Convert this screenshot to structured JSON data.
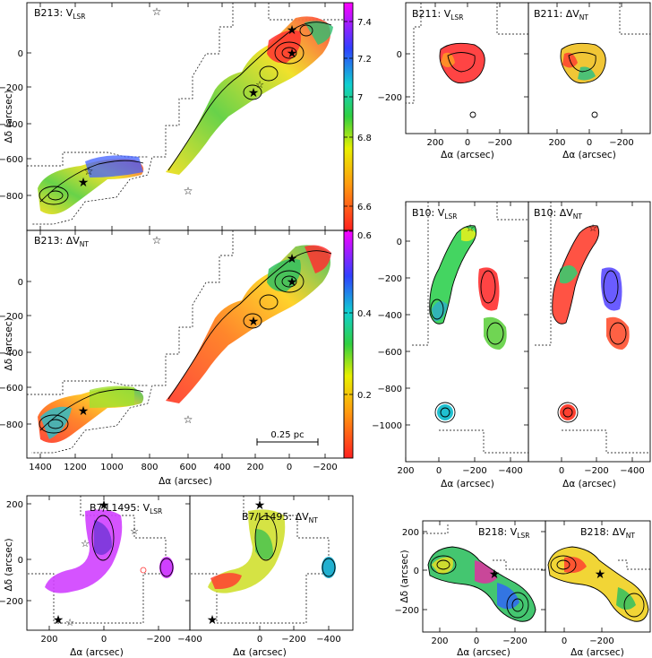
{
  "chart_data": [
    {
      "type": "heatmap",
      "id": "b213",
      "panels": [
        {
          "title": "B213: V",
          "subscript": "LSR"
        },
        {
          "title": "B213: ΔV",
          "subscript": "NT"
        }
      ],
      "xlabel": "Δα (arcsec)",
      "ylabel": "Δδ (arcsec)",
      "xlim": [
        1450,
        -300
      ],
      "ylim": [
        -1000,
        250
      ],
      "xticks": [
        "1400",
        "1200",
        "1000",
        "800",
        "600",
        "400",
        "200",
        "0",
        "−200"
      ],
      "yticks": [
        "0",
        "−200",
        "−400",
        "−600",
        "−800"
      ],
      "colorbars": [
        {
          "ticks": [
            "7.4",
            "7.2",
            "7",
            "6.8",
            "6.6"
          ],
          "range": [
            6.5,
            7.5
          ]
        },
        {
          "ticks": [
            "0.6",
            "0.4",
            "0.2"
          ],
          "range": [
            0.1,
            0.6
          ]
        }
      ],
      "scalebar": "0.25 pc"
    },
    {
      "type": "heatmap",
      "id": "b211",
      "panels": [
        {
          "title": "B211: V",
          "subscript": "LSR"
        },
        {
          "title": "B211: ΔV",
          "subscript": "NT"
        }
      ],
      "xlabel": "Δα (arcsec)",
      "xticks": [
        "200",
        "0",
        "−200"
      ],
      "yticks": [
        "0",
        "−200"
      ]
    },
    {
      "type": "heatmap",
      "id": "b10",
      "panels": [
        {
          "title": "B10: V",
          "subscript": "LSR"
        },
        {
          "title": "B10: ΔV",
          "subscript": "NT"
        }
      ],
      "xlabel": "Δα (arcsec)",
      "xticks_left": [
        "200",
        "0",
        "−200",
        "−400"
      ],
      "xticks_right": [
        "0",
        "−200",
        "−400"
      ],
      "yticks": [
        "0",
        "−200",
        "−400",
        "−600",
        "−800",
        "−1000"
      ]
    },
    {
      "type": "heatmap",
      "id": "b7",
      "panels": [
        {
          "title": "B7/L1495: V",
          "subscript": "LSR"
        },
        {
          "title": "B7/L1495: ΔV",
          "subscript": "NT"
        }
      ],
      "xlabel": "Δα (arcsec)",
      "ylabel": "Δδ (arcsec)",
      "xticks_left": [
        "200",
        "0",
        "−200",
        "−400"
      ],
      "xticks_right": [
        "0",
        "−200",
        "−400"
      ],
      "yticks": [
        "200",
        "0",
        "−200"
      ]
    },
    {
      "type": "heatmap",
      "id": "b218",
      "panels": [
        {
          "title": "B218: V",
          "subscript": "LSR"
        },
        {
          "title": "B218: ΔV",
          "subscript": "NT"
        }
      ],
      "xlabel": "Δα (arcsec)",
      "ylabel": "Δδ (arcsec)",
      "xticks_left": [
        "200",
        "0",
        "−200"
      ],
      "xticks_right": [
        "0",
        "−200"
      ],
      "yticks": [
        "200",
        "0",
        "−200"
      ]
    }
  ]
}
